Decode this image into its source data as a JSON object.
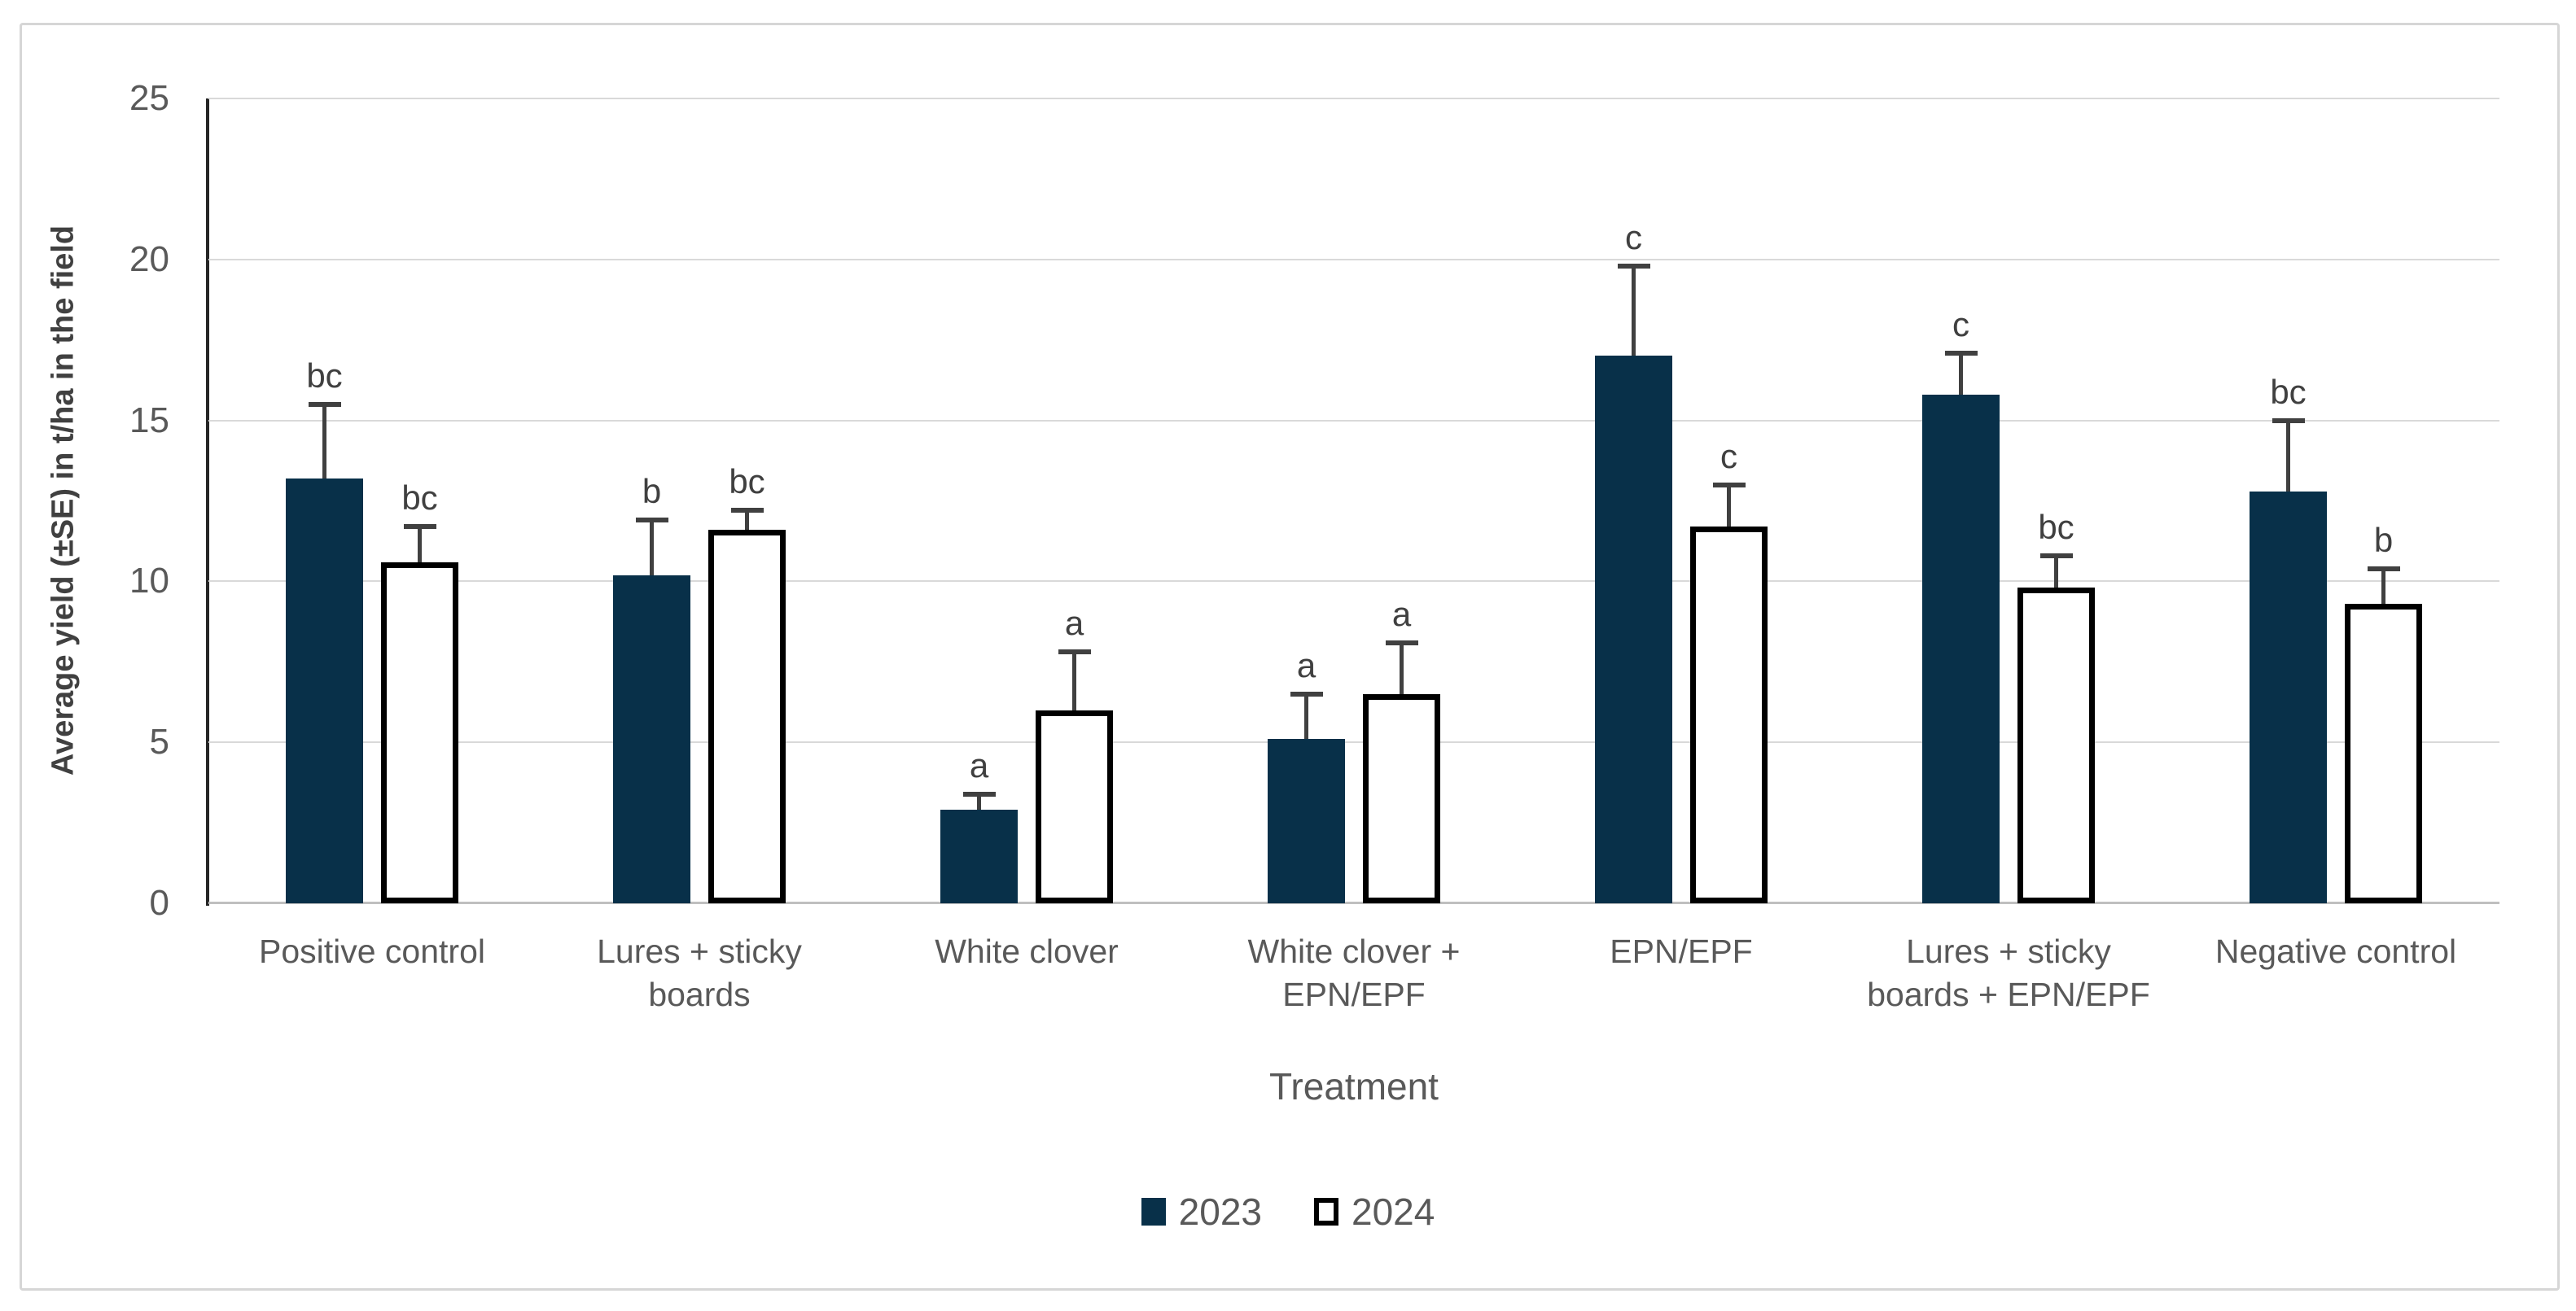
{
  "chart_data": {
    "type": "bar",
    "title": "",
    "xlabel": "Treatment",
    "ylabel": "Average yield (±SE) in t/ha in the field",
    "ylim": [
      0,
      25
    ],
    "yticks": [
      0,
      5,
      10,
      15,
      20,
      25
    ],
    "grid": true,
    "legend_position": "bottom-center",
    "categories": [
      "Positive control",
      "Lures + sticky boards",
      "White clover",
      "White clover + EPN/EPF",
      "EPN/EPF",
      "Lures + sticky boards + EPN/EPF",
      "Negative control"
    ],
    "series": [
      {
        "name": "2023",
        "values": [
          13.2,
          10.2,
          2.9,
          5.1,
          17.0,
          15.8,
          12.8
        ],
        "se": [
          2.3,
          1.7,
          0.5,
          1.4,
          2.8,
          1.3,
          2.2
        ],
        "letters": [
          "bc",
          "b",
          "a",
          "a",
          "c",
          "c",
          "bc"
        ]
      },
      {
        "name": "2024",
        "values": [
          10.6,
          11.6,
          6.0,
          6.5,
          11.7,
          9.8,
          9.3
        ],
        "se": [
          1.1,
          0.6,
          1.8,
          1.6,
          1.3,
          1.0,
          1.1
        ],
        "letters": [
          "bc",
          "bc",
          "a",
          "a",
          "c",
          "bc",
          "b"
        ]
      }
    ]
  },
  "colors": {
    "series_2023_fill": "#083049",
    "series_2024_fill": "#ffffff",
    "series_2024_border": "#000000",
    "gridline": "#d9d9d9",
    "axis_line": "#262626",
    "error_bar": "#404040",
    "tick_text": "#595959",
    "letter_text": "#404040"
  }
}
